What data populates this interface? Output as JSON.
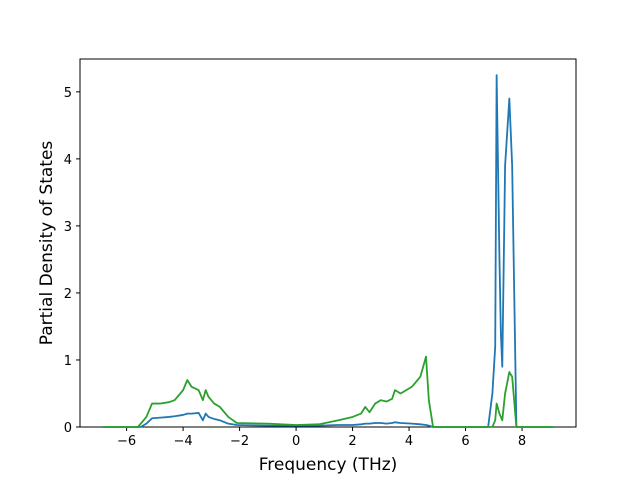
{
  "chart_data": {
    "type": "line",
    "xlabel": "Frequency (THz)",
    "ylabel": "Partial Density of States",
    "x": [
      -6.85,
      -5.6,
      -5.5,
      -5.3,
      -5.1,
      -4.8,
      -4.5,
      -4.3,
      -4.0,
      -3.85,
      -3.7,
      -3.45,
      -3.3,
      -3.2,
      -3.1,
      -2.9,
      -2.7,
      -2.4,
      -2.1,
      -1.0,
      0,
      0.8,
      1.5,
      2.0,
      2.3,
      2.45,
      2.6,
      2.8,
      3.0,
      3.2,
      3.4,
      3.5,
      3.7,
      4.1,
      4.4,
      4.6,
      4.7,
      4.85,
      6.8,
      6.95,
      7.05,
      7.1,
      7.2,
      7.25,
      7.3,
      7.4,
      7.55,
      7.65,
      7.8,
      9.1
    ],
    "series": [
      {
        "color": "#1f77b4",
        "values": [
          0,
          0,
          0,
          0.05,
          0.13,
          0.14,
          0.15,
          0.16,
          0.18,
          0.2,
          0.2,
          0.21,
          0.1,
          0.2,
          0.15,
          0.12,
          0.1,
          0.05,
          0.03,
          0.02,
          0.02,
          0.02,
          0.03,
          0.03,
          0.04,
          0.05,
          0.05,
          0.06,
          0.06,
          0.05,
          0.06,
          0.07,
          0.06,
          0.05,
          0.04,
          0.03,
          0.02,
          0,
          0,
          0.5,
          1.2,
          5.25,
          2.5,
          1.4,
          0.9,
          3.9,
          4.9,
          3.9,
          0,
          0
        ]
      },
      {
        "color": "#2ca02c",
        "values": [
          0,
          0,
          0.05,
          0.15,
          0.35,
          0.35,
          0.37,
          0.4,
          0.55,
          0.7,
          0.6,
          0.55,
          0.4,
          0.55,
          0.45,
          0.35,
          0.3,
          0.15,
          0.06,
          0.05,
          0.03,
          0.04,
          0.1,
          0.15,
          0.2,
          0.3,
          0.22,
          0.35,
          0.4,
          0.38,
          0.42,
          0.55,
          0.5,
          0.6,
          0.75,
          1.05,
          0.4,
          0,
          0,
          0,
          0.1,
          0.35,
          0.2,
          0.15,
          0.1,
          0.5,
          0.82,
          0.75,
          0,
          0
        ]
      }
    ],
    "xlim": [
      -7.65,
      9.91
    ],
    "ylim": [
      0,
      5.49
    ],
    "xticks": [
      {
        "value": -6,
        "label": "−6"
      },
      {
        "value": -4,
        "label": "−4"
      },
      {
        "value": -2,
        "label": "−2"
      },
      0,
      2,
      4,
      6,
      8
    ],
    "yticks": [
      0,
      1,
      2,
      3,
      4,
      5
    ]
  }
}
